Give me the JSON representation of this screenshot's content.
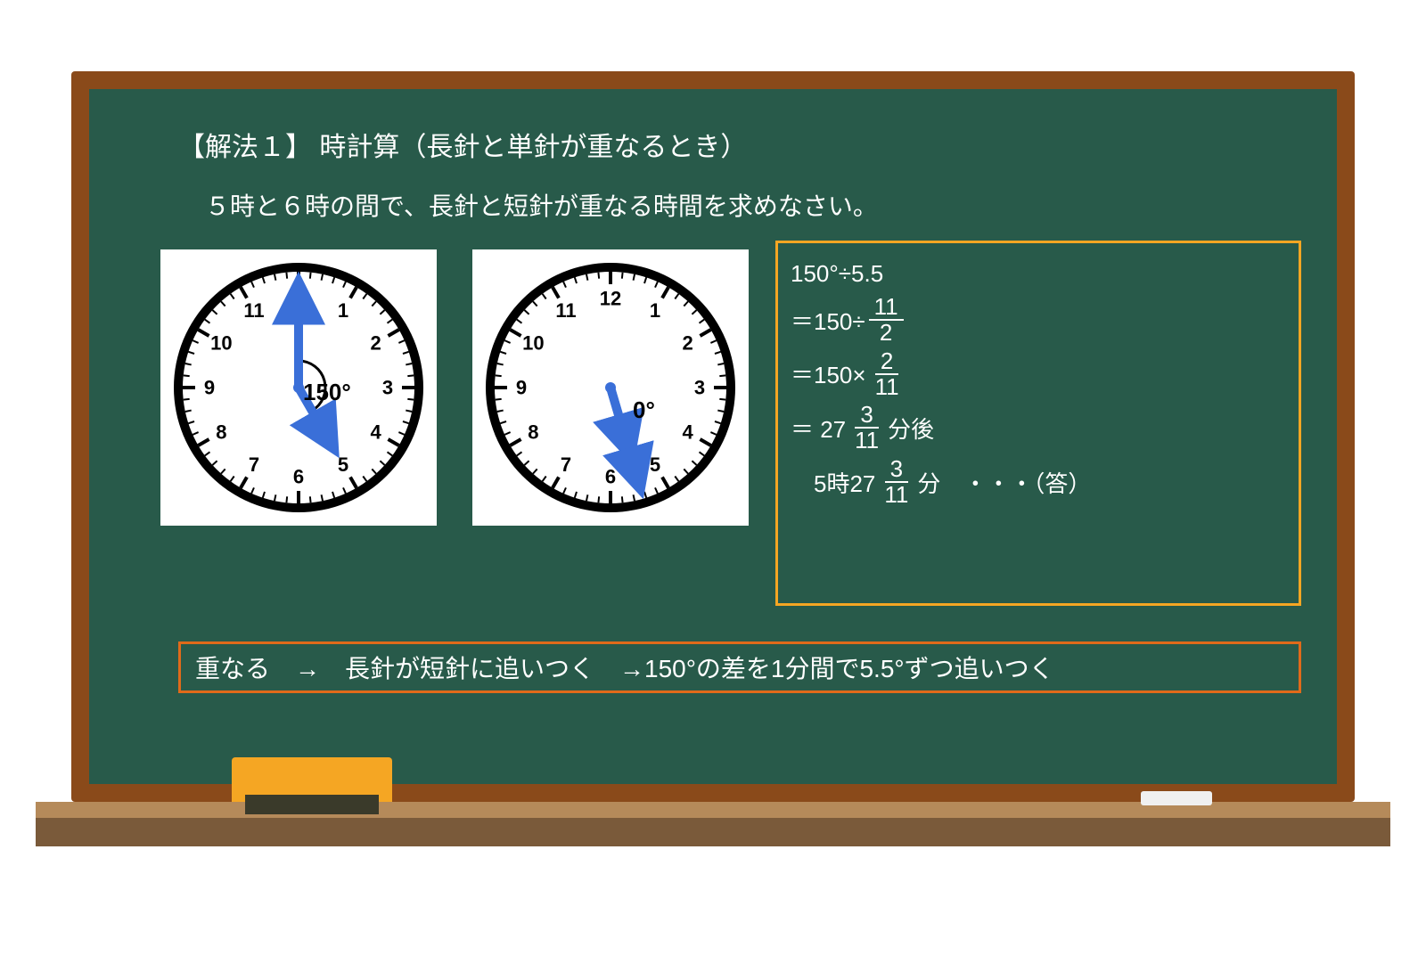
{
  "board": {
    "outer_color": "#8a4a1a",
    "inner_color": "#285a4a",
    "ledge_color": "#7a5a3a",
    "ledge_top_color": "#b58a5a",
    "eraser_color": "#f5a623",
    "eraser_base_color": "#3a3a2a",
    "chalk_color": "#f0f0f0"
  },
  "text": {
    "title": "【解法１】 時計算（長針と単針が重なるとき）",
    "problem": "５時と６時の間で、長針と短針が重なる時間を求めなさい。",
    "summary": "重なる　→　長針が短針に追いつく　→150°の差を1分間で5.5°ずつ追いつく",
    "text_color": "#ffffff",
    "title_fontsize": 30,
    "problem_fontsize": 28,
    "summary_fontsize": 28
  },
  "clock1": {
    "type": "clock",
    "panel_bg": "#ffffff",
    "face_bg": "#ffffff",
    "border_color": "#000000",
    "border_width": 10,
    "tick_color": "#000000",
    "numeral_color": "#000000",
    "numeral_fontsize": 22,
    "hand_color": "#3a6fd8",
    "minute_hand_angle_deg": 0,
    "hour_hand_angle_deg": 150,
    "angle_arc_deg": 150,
    "angle_label": "150°",
    "angle_label_fontsize": 26
  },
  "clock2": {
    "type": "clock",
    "panel_bg": "#ffffff",
    "face_bg": "#ffffff",
    "border_color": "#000000",
    "border_width": 10,
    "tick_color": "#000000",
    "numeral_color": "#000000",
    "numeral_fontsize": 22,
    "hand_color": "#3a6fd8",
    "minute_hand_angle_deg": 163.6,
    "hour_hand_angle_deg": 163.6,
    "angle_arc_deg": 0,
    "angle_label": "0°",
    "angle_label_fontsize": 26
  },
  "calc": {
    "border_color": "#f5a623",
    "text_color": "#ffffff",
    "fontsize": 26,
    "line1": "150°÷5.5",
    "l2_pre": "＝150÷",
    "l2_num": "11",
    "l2_den": "2",
    "l3_pre": "＝150×",
    "l3_num": "2",
    "l3_den": "11",
    "l4_pre": "＝ 27",
    "l4_num": "3",
    "l4_den": "11",
    "l4_post": " 分後",
    "l5_pre": "　5時27",
    "l5_num": "3",
    "l5_den": "11",
    "l5_post": " 分　・・・（答）"
  },
  "summary_box": {
    "border_color": "#e06a1a"
  }
}
